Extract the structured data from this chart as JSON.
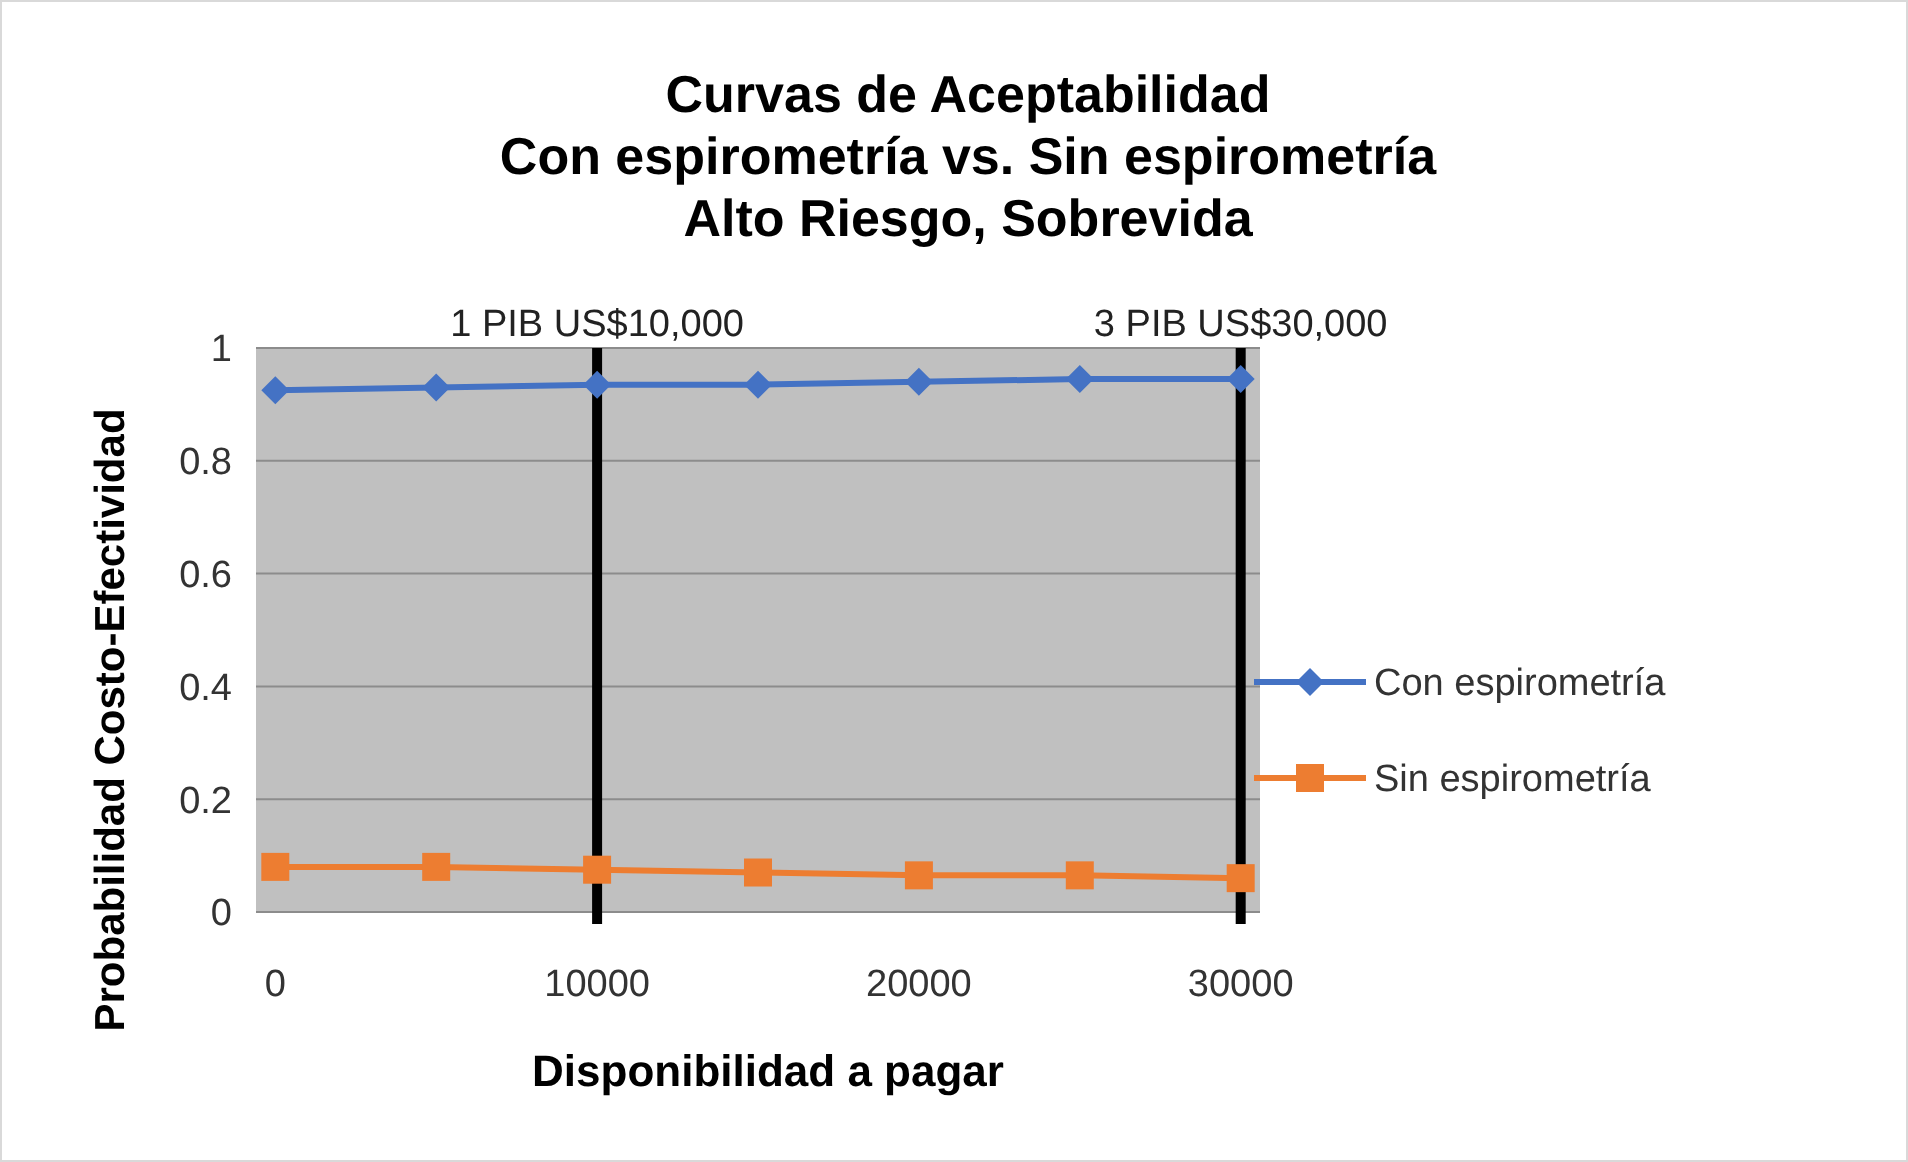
{
  "chart_data": {
    "type": "line",
    "title": "Curvas de Aceptabilidad\nCon espirometría vs. Sin espirometría\nAlto Riesgo, Sobrevida",
    "xlabel": "Disponibilidad  a pagar",
    "ylabel": "Probabilidad Costo-Efectividad",
    "x": [
      0,
      5000,
      10000,
      15000,
      20000,
      25000,
      30000
    ],
    "series": [
      {
        "name": "Con espirometría",
        "color": "#4472c4",
        "marker": "diamond",
        "values": [
          0.925,
          0.93,
          0.935,
          0.935,
          0.94,
          0.945,
          0.945
        ]
      },
      {
        "name": "Sin espirometría",
        "color": "#ed7d31",
        "marker": "square",
        "values": [
          0.08,
          0.08,
          0.075,
          0.07,
          0.065,
          0.065,
          0.06
        ]
      }
    ],
    "xlim": [
      -600,
      30600
    ],
    "xticks": [
      0,
      10000,
      20000,
      30000
    ],
    "ylim": [
      0,
      1
    ],
    "yticks": [
      0,
      0.2,
      0.4,
      0.6,
      0.8,
      1
    ],
    "grid": "y",
    "legend": "right",
    "ref_lines": [
      {
        "axis": "x",
        "value": 10000,
        "label": "1 PIB US$10,000",
        "color": "#000000"
      },
      {
        "axis": "x",
        "value": 30000,
        "label": "3 PIB US$30,000",
        "color": "#000000"
      }
    ]
  }
}
